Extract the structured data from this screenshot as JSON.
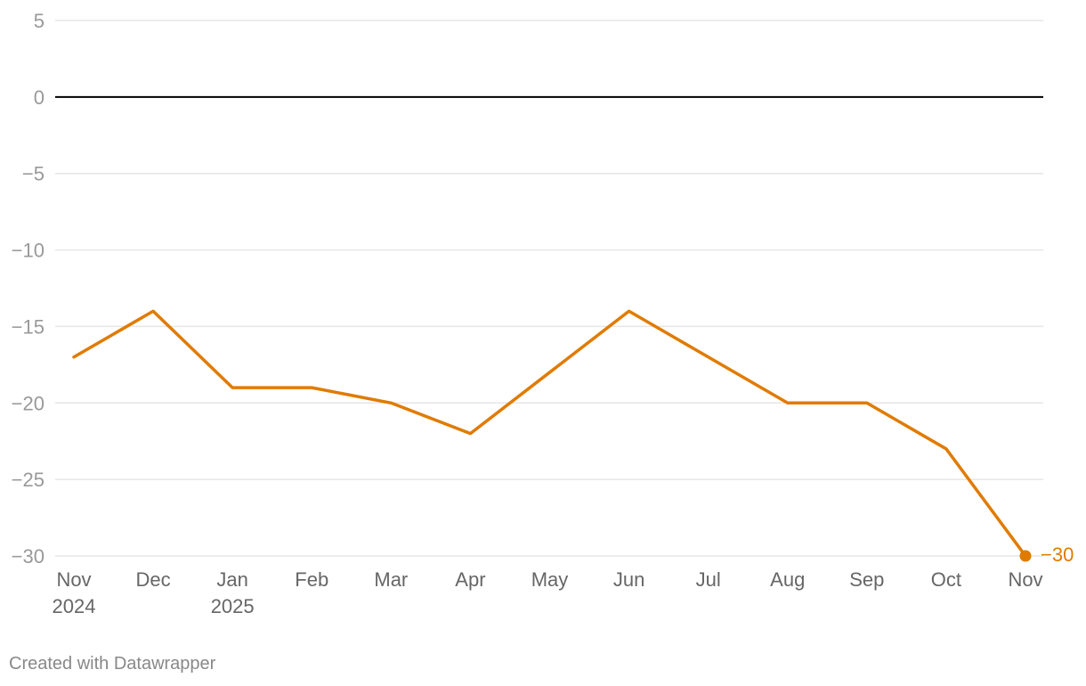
{
  "chart_data": {
    "type": "line",
    "title": "",
    "xlabel": "",
    "ylabel": "",
    "categories": [
      [
        "Nov",
        "2024"
      ],
      [
        "Dec"
      ],
      [
        "Jan",
        "2025"
      ],
      [
        "Feb"
      ],
      [
        "Mar"
      ],
      [
        "Apr"
      ],
      [
        "May"
      ],
      [
        "Jun"
      ],
      [
        "Jul"
      ],
      [
        "Aug"
      ],
      [
        "Sep"
      ],
      [
        "Oct"
      ],
      [
        "Nov"
      ]
    ],
    "series": [
      {
        "values": [
          -17,
          -14,
          -19,
          -19,
          -20,
          -22,
          -18,
          -14,
          -17,
          -20,
          -20,
          -23,
          -30
        ],
        "color": "#e07b00"
      }
    ],
    "end_label": "−30",
    "ylim": [
      -30,
      5
    ],
    "yticks": [
      {
        "value": 5,
        "label": "5"
      },
      {
        "value": 0,
        "label": "0"
      },
      {
        "value": -5,
        "label": "−5"
      },
      {
        "value": -10,
        "label": "−10"
      },
      {
        "value": -15,
        "label": "−15"
      },
      {
        "value": -20,
        "label": "−20"
      },
      {
        "value": -25,
        "label": "−25"
      },
      {
        "value": -30,
        "label": "−30"
      }
    ],
    "grid": true
  },
  "footer": {
    "credit": "Created with Datawrapper"
  }
}
